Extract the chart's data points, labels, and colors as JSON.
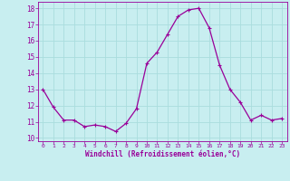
{
  "x": [
    0,
    1,
    2,
    3,
    4,
    5,
    6,
    7,
    8,
    9,
    10,
    11,
    12,
    13,
    14,
    15,
    16,
    17,
    18,
    19,
    20,
    21,
    22,
    23
  ],
  "y": [
    13.0,
    11.9,
    11.1,
    11.1,
    10.7,
    10.8,
    10.7,
    10.4,
    10.9,
    11.8,
    14.6,
    15.3,
    16.4,
    17.5,
    17.9,
    18.0,
    16.8,
    14.5,
    13.0,
    12.2,
    11.1,
    11.4,
    11.1,
    11.2
  ],
  "line_color": "#990099",
  "marker": "+",
  "marker_size": 4,
  "bg_color": "#c8eef0",
  "grid_color": "#aadddd",
  "xlabel": "Windchill (Refroidissement éolien,°C)",
  "xlabel_color": "#990099",
  "tick_color": "#990099",
  "label_color": "#990099",
  "ylim": [
    9.8,
    18.4
  ],
  "yticks": [
    10,
    11,
    12,
    13,
    14,
    15,
    16,
    17,
    18
  ],
  "xlim": [
    -0.5,
    23.5
  ],
  "xticks": [
    0,
    1,
    2,
    3,
    4,
    5,
    6,
    7,
    8,
    9,
    10,
    11,
    12,
    13,
    14,
    15,
    16,
    17,
    18,
    19,
    20,
    21,
    22,
    23
  ],
  "xtick_labels": [
    "0",
    "1",
    "2",
    "3",
    "4",
    "5",
    "6",
    "7",
    "8",
    "9",
    "10",
    "11",
    "12",
    "13",
    "14",
    "15",
    "16",
    "17",
    "18",
    "19",
    "20",
    "21",
    "22",
    "23"
  ]
}
